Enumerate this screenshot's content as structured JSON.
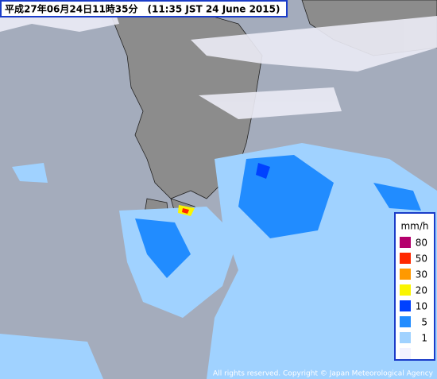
{
  "header": {
    "title": "平成27年06月24日11時35分　(11:35 JST 24 June 2015)"
  },
  "legend": {
    "unit": "mm/h",
    "levels": [
      {
        "label": "80",
        "color": "#b4006c"
      },
      {
        "label": "50",
        "color": "#ff2800"
      },
      {
        "label": "30",
        "color": "#ff9900"
      },
      {
        "label": "20",
        "color": "#faf500"
      },
      {
        "label": "10",
        "color": "#0041ff"
      },
      {
        "label": "5",
        "color": "#218cff"
      },
      {
        "label": "1",
        "color": "#a0d2ff"
      }
    ],
    "below_color": "#f2f2ff"
  },
  "footer": {
    "copyright": "All rights reserved. Copyright © Japan Meteorological Agency"
  }
}
